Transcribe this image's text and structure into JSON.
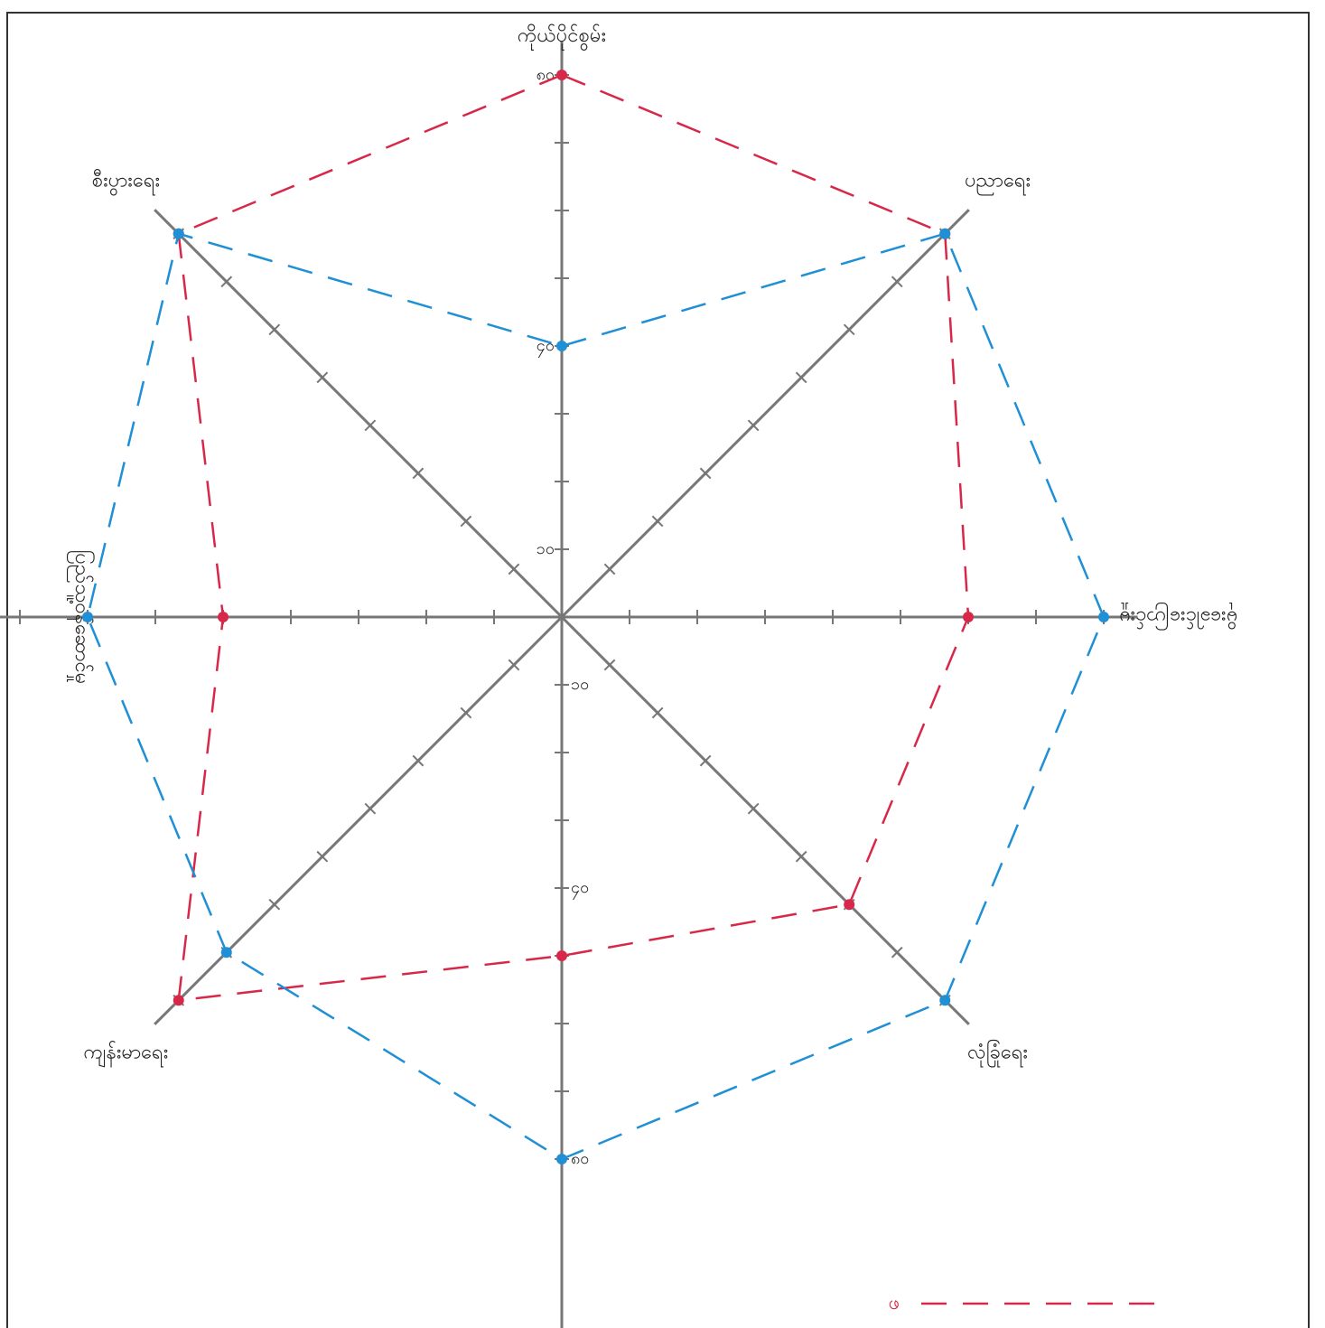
{
  "chart_data": {
    "type": "radar",
    "categories": [
      "ကိုယ်ပိုင်စွမ်း",
      "ပညာရေး",
      "မိုးခေါင်းပြောင်းမှု",
      "လုံခြုံရေး",
      null,
      "ကျန်းမာရေး",
      "ပြည်သူ့ဝန်ဆောင်မှု",
      "စီးပွားရေး"
    ],
    "series": [
      {
        "name": "ဖ",
        "color": "#d8284a",
        "values": [
          80,
          80,
          60,
          60,
          50,
          80,
          50,
          80
        ]
      },
      {
        "color": "#1f8fd6",
        "values": [
          40,
          80,
          80,
          80,
          80,
          70,
          70,
          80
        ]
      }
    ],
    "ylim": [
      0,
      85
    ],
    "yticks": [
      {
        "value": 10,
        "label": "၁၀"
      },
      {
        "value": 40,
        "label": "၄၀"
      },
      {
        "value": 80,
        "label": "၈၀"
      }
    ],
    "minor_ticks": [
      20,
      30,
      50,
      60,
      70
    ],
    "line_style": "dashed",
    "legend": "bottom-right"
  }
}
